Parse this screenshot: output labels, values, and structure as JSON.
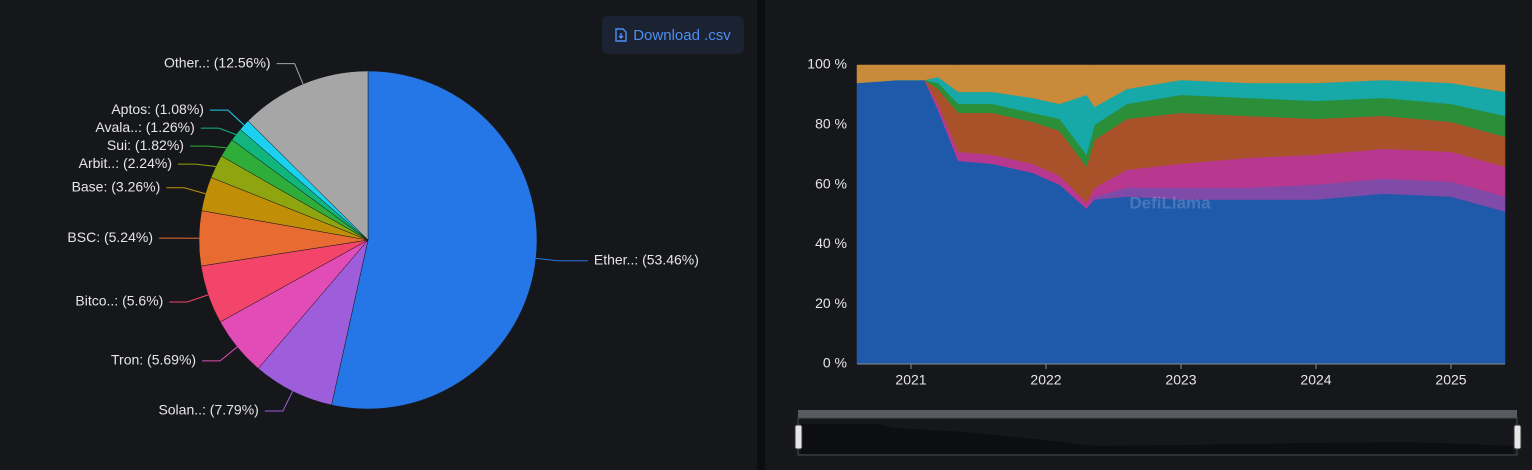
{
  "button": "Download .csv",
  "chart_data": [
    {
      "type": "pie",
      "values": [
        53.46,
        7.79,
        5.69,
        5.6,
        5.24,
        3.26,
        2.24,
        1.82,
        1.26,
        1.08,
        12.56
      ],
      "value_labels": [
        "Ether..: (53.46%)",
        "Solan..: (7.79%)",
        "Tron: (5.69%)",
        "Bitco..: (5.6%)",
        "BSC: (5.24%)",
        "Base: (3.26%)",
        "Arbit..: (2.24%)",
        "Sui: (1.82%)",
        "Avala..: (1.26%)",
        "Aptos: (1.08%)",
        "Other..: (12.56%)"
      ],
      "colors": [
        "#2576e6",
        "#9e5ddb",
        "#e14cb6",
        "#f3456a",
        "#e86b31",
        "#c08f07",
        "#8fa50f",
        "#2fad3a",
        "#11b57d",
        "#1bd1ef",
        "#a6a6a6"
      ]
    },
    {
      "type": "stacked-area",
      "watermark": "DefiLlama",
      "x": [
        2020.6,
        2020.9,
        2021.1,
        2021.2,
        2021.35,
        2021.6,
        2021.9,
        2022.1,
        2022.3,
        2022.36,
        2022.6,
        2023.0,
        2023.5,
        2024.0,
        2024.5,
        2025.0,
        2025.4
      ],
      "xlim": [
        2020.6,
        2025.4
      ],
      "xticks": [
        2021,
        2022,
        2023,
        2024,
        2025
      ],
      "ylim": [
        0,
        100
      ],
      "yticks": [
        {
          "value": 0,
          "label": "0 %"
        },
        {
          "value": 20,
          "label": "20 %"
        },
        {
          "value": 40,
          "label": "40 %"
        },
        {
          "value": 60,
          "label": "60 %"
        },
        {
          "value": 80,
          "label": "80 %"
        },
        {
          "value": 100,
          "label": "100 %"
        }
      ],
      "grid": false,
      "series": [
        {
          "color": "#1f5aaa",
          "values": [
            94,
            95,
            95,
            85,
            68,
            67,
            64,
            60,
            52,
            55,
            56,
            55,
            55,
            55,
            57,
            56,
            51
          ]
        },
        {
          "color": "#7f4aa8",
          "values": [
            0,
            0,
            0,
            0,
            0,
            0,
            0,
            0,
            0,
            1,
            3,
            4,
            4,
            5,
            5,
            5,
            5
          ]
        },
        {
          "color": "#b8388f",
          "values": [
            0,
            0,
            0,
            2,
            3,
            3,
            3,
            3,
            2,
            3,
            6,
            8,
            10,
            10,
            10,
            10,
            10
          ]
        },
        {
          "color": "#a9522a",
          "values": [
            0,
            0,
            0,
            5,
            13,
            14,
            14,
            15,
            12,
            16,
            17,
            17,
            14,
            12,
            11,
            10,
            10
          ]
        },
        {
          "color": "#2b8f3a",
          "values": [
            0,
            0,
            0,
            2,
            3,
            3,
            3,
            4,
            4,
            5,
            5,
            6,
            6,
            6,
            6,
            6,
            7
          ]
        },
        {
          "color": "#17a8a8",
          "values": [
            0,
            0,
            0,
            2,
            4,
            4,
            5,
            5,
            20,
            6,
            5,
            5,
            5,
            6,
            6,
            7,
            8
          ]
        },
        {
          "color": "#c98a3a",
          "values": [
            6,
            5,
            5,
            4,
            9,
            9,
            11,
            13,
            10,
            14,
            8,
            5,
            6,
            6,
            5,
            6,
            9
          ]
        }
      ]
    }
  ]
}
